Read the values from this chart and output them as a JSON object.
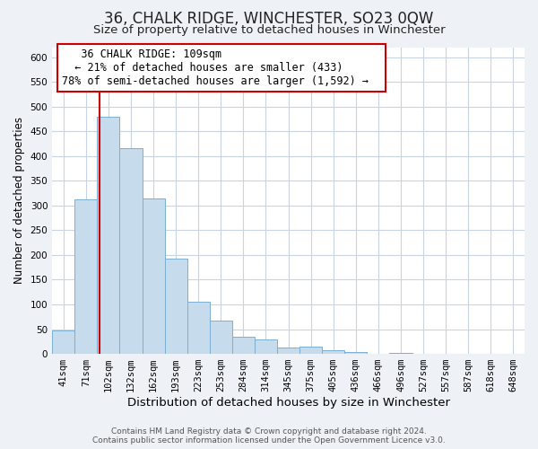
{
  "title": "36, CHALK RIDGE, WINCHESTER, SO23 0QW",
  "subtitle": "Size of property relative to detached houses in Winchester",
  "xlabel": "Distribution of detached houses by size in Winchester",
  "ylabel": "Number of detached properties",
  "bar_labels": [
    "41sqm",
    "71sqm",
    "102sqm",
    "132sqm",
    "162sqm",
    "193sqm",
    "223sqm",
    "253sqm",
    "284sqm",
    "314sqm",
    "345sqm",
    "375sqm",
    "405sqm",
    "436sqm",
    "466sqm",
    "496sqm",
    "527sqm",
    "557sqm",
    "587sqm",
    "618sqm",
    "648sqm"
  ],
  "bar_values": [
    47,
    313,
    480,
    416,
    314,
    192,
    105,
    67,
    35,
    30,
    13,
    14,
    8,
    3,
    0,
    2,
    0,
    0,
    0,
    0,
    1
  ],
  "bar_color": "#c6dcec",
  "bar_edge_color": "#7bafd4",
  "vline_color": "#cc0000",
  "vline_x_index": 2,
  "ylim": [
    0,
    620
  ],
  "yticks": [
    0,
    50,
    100,
    150,
    200,
    250,
    300,
    350,
    400,
    450,
    500,
    550,
    600
  ],
  "annotation_title": "36 CHALK RIDGE: 109sqm",
  "annotation_line1": "← 21% of detached houses are smaller (433)",
  "annotation_line2": "78% of semi-detached houses are larger (1,592) →",
  "annotation_box_color": "#ffffff",
  "annotation_box_edge": "#cc0000",
  "footer_line1": "Contains HM Land Registry data © Crown copyright and database right 2024.",
  "footer_line2": "Contains public sector information licensed under the Open Government Licence v3.0.",
  "bg_color": "#eef2f7",
  "plot_bg_color": "#ffffff",
  "grid_color": "#c8d4e0",
  "title_fontsize": 12,
  "subtitle_fontsize": 9.5,
  "xlabel_fontsize": 9.5,
  "ylabel_fontsize": 8.5,
  "tick_fontsize": 7.5,
  "footer_fontsize": 6.5,
  "ann_fontsize": 8.5
}
